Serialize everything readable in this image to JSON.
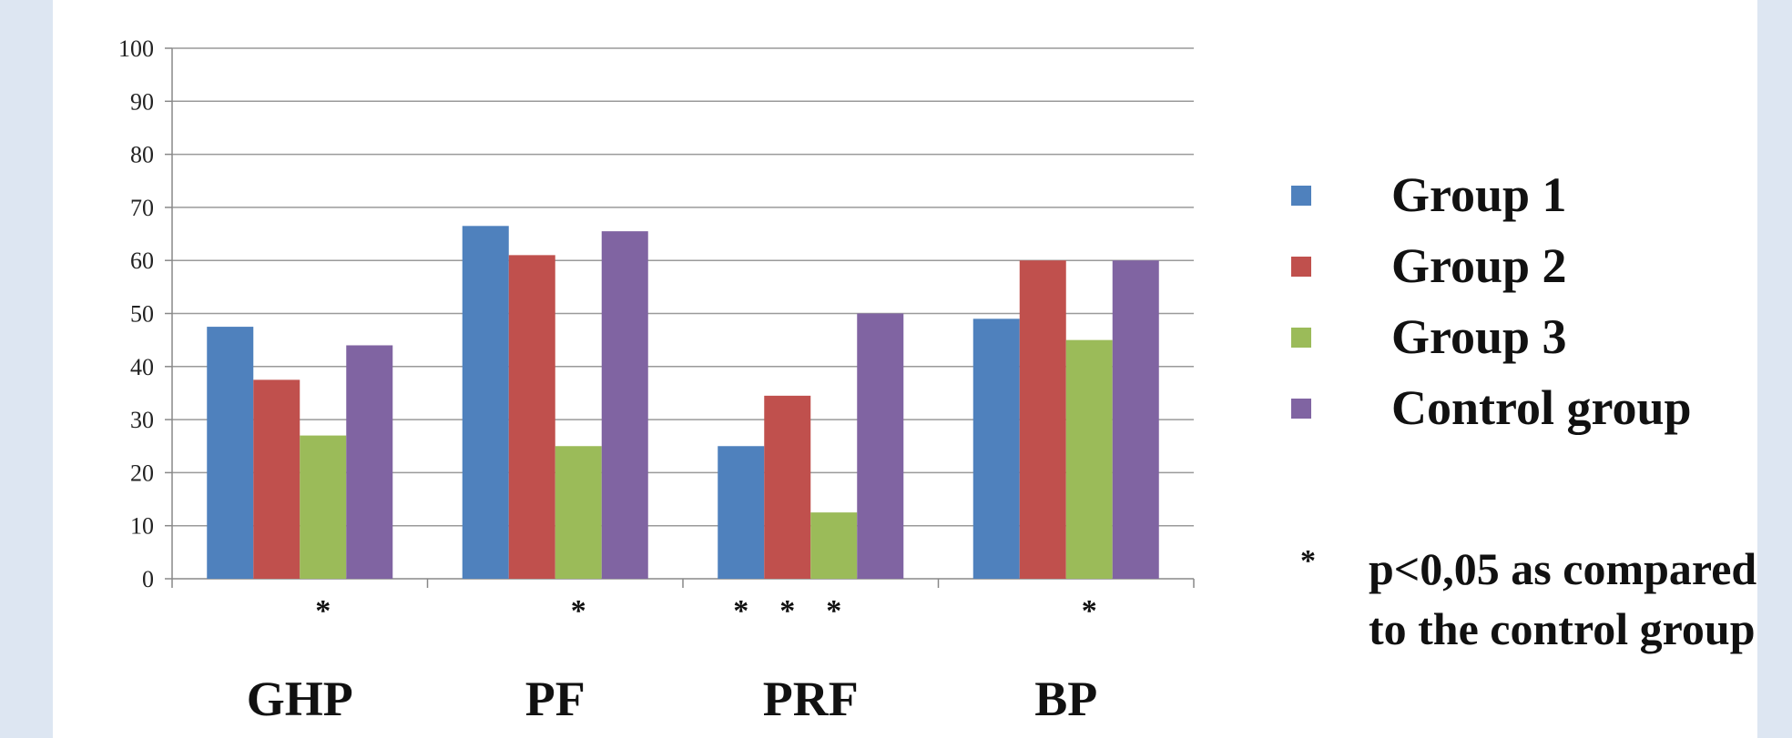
{
  "chart_data": {
    "type": "bar",
    "categories": [
      "GHP",
      "PF",
      "PRF",
      "BP"
    ],
    "series": [
      {
        "name": "Group 1",
        "color": "#4f81bd",
        "values": [
          47.5,
          66.5,
          25,
          49
        ]
      },
      {
        "name": "Group 2",
        "color": "#c0504d",
        "values": [
          37.5,
          61,
          34.5,
          60
        ]
      },
      {
        "name": "Group 3",
        "color": "#9bbb59",
        "values": [
          27,
          25,
          12.5,
          45
        ]
      },
      {
        "name": "Control group",
        "color": "#8064a2",
        "values": [
          44,
          65.5,
          50,
          60
        ]
      }
    ],
    "ylim": [
      0,
      100
    ],
    "yticks": [
      0,
      10,
      20,
      30,
      40,
      50,
      60,
      70,
      80,
      90,
      100
    ],
    "grid": true,
    "legend_position": "right",
    "significance": [
      {
        "category": "GHP",
        "marker": "*"
      },
      {
        "category": "PF",
        "marker": "*"
      },
      {
        "category": "PRF",
        "marker": "* * *"
      },
      {
        "category": "BP",
        "marker": "*"
      }
    ],
    "note": {
      "marker": "*",
      "text": "p<0,05 as compared to the control group"
    }
  }
}
